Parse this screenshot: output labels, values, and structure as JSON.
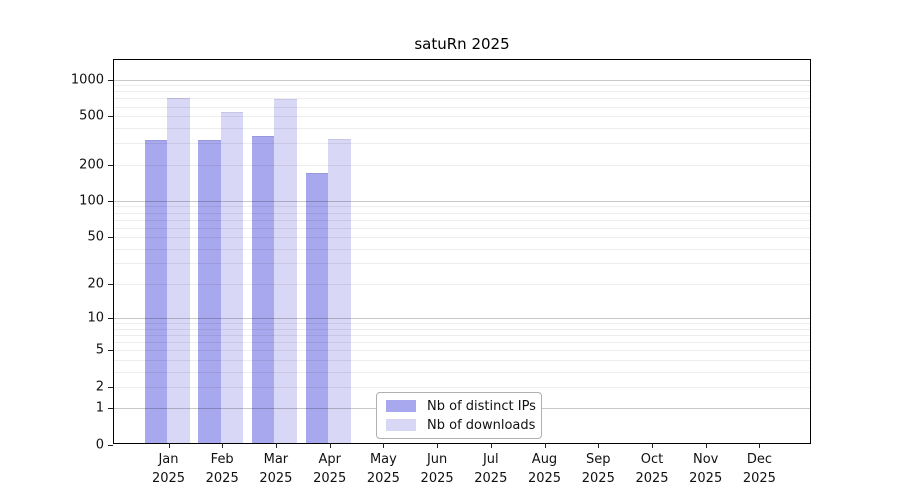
{
  "chart_data": {
    "type": "bar",
    "title": "satuRn 2025",
    "categories": [
      "Jan",
      "Feb",
      "Mar",
      "Apr",
      "May",
      "Jun",
      "Jul",
      "Aug",
      "Sep",
      "Oct",
      "Nov",
      "Dec"
    ],
    "category_sublabel": "2025",
    "series": [
      {
        "name": "Nb of distinct IPs",
        "color": "#a8a8ee",
        "cap_color": "#9898dd",
        "values": [
          306,
          306,
          330,
          164,
          null,
          null,
          null,
          null,
          null,
          null,
          null,
          null
        ]
      },
      {
        "name": "Nb of downloads",
        "color": "#d8d8f6",
        "cap_color": "#c7c7e8",
        "values": [
          679,
          521,
          666,
          312,
          null,
          null,
          null,
          null,
          null,
          null,
          null,
          null
        ]
      }
    ],
    "yticks": [
      0,
      1,
      2,
      5,
      10,
      20,
      50,
      100,
      200,
      500,
      1000
    ],
    "ylim": [
      0,
      1400
    ],
    "scale": "log1p",
    "grid": "horizontal-major-minor",
    "major_grid_values": [
      1,
      10,
      100,
      1000
    ],
    "legend": {
      "position": "bottom-center",
      "entries": [
        "Nb of distinct IPs",
        "Nb of downloads"
      ]
    },
    "axis_color": "#000000",
    "major_grid_color": "#c9c9c9",
    "minor_grid_color": "#ededed"
  }
}
